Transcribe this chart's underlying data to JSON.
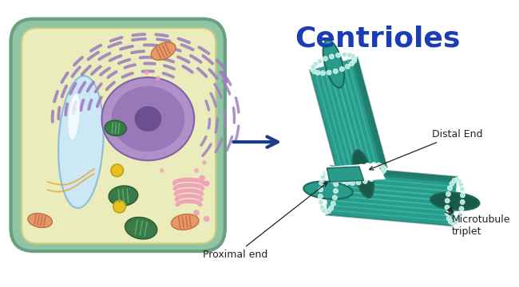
{
  "title": "Centrioles",
  "title_color": "#1a3db5",
  "title_fontsize": 26,
  "title_fontweight": "bold",
  "bg_color": "#ffffff",
  "cell_outer_color": "#8fc4a4",
  "cell_outer_edge": "#6aa080",
  "cell_inner_color": "#eaedbb",
  "cell_inner_edge": "#c8cc80",
  "vacuole_color": "#cce8f5",
  "vacuole_edge": "#90bcd8",
  "nucleus_outer_color": "#b090c8",
  "nucleus_inner_color": "#9878b8",
  "nucleolus_color": "#6a5090",
  "er_color": "#a080c0",
  "mitochondria_color": "#e8976a",
  "mitochondria_edge": "#c07040",
  "chloroplast_color": "#3a7a4a",
  "chloroplast_edge": "#2a5a2a",
  "golgi_color": "#f0a0b8",
  "yellow_circle_color": "#e8c020",
  "yellow_circle_edge": "#c0a010",
  "pink_dot_color": "#f0a0b8",
  "orange_strand_color": "#e8a020",
  "centriole_teal": "#2a9a8a",
  "centriole_dark": "#1a6a5a",
  "centriole_stripe": "#3bbba8",
  "centriole_bead": "#b0e8e0",
  "centriole_inner": "#1a5a4a",
  "centriole_shadow": "#155040",
  "arrow_color": "#1a3d8a",
  "label_color": "#222222",
  "annotation_fontsize": 9,
  "proximal_label": "Proximal end",
  "distal_label": "Distal End",
  "microtubule_label": "Microtubule\ntriplet"
}
